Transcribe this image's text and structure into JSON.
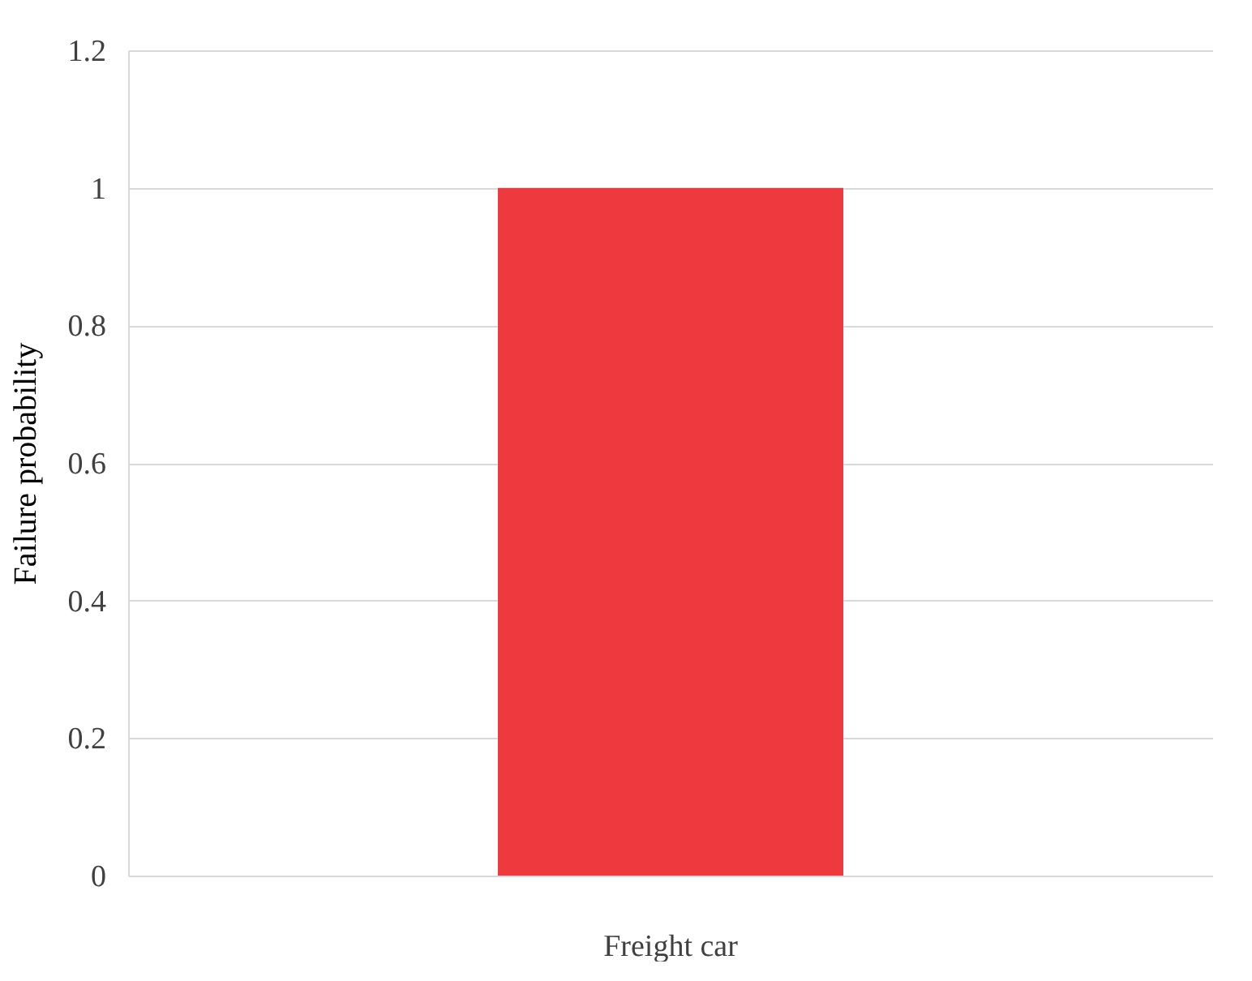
{
  "chart_data": {
    "type": "bar",
    "categories": [
      "Freight car"
    ],
    "values": [
      1
    ],
    "color": "#ee3a3e",
    "ylabel": "Failure probability",
    "ylim": [
      0,
      1.2
    ],
    "yticks": [
      0,
      0.2,
      0.4,
      0.6,
      0.8,
      1,
      1.2
    ],
    "grid": "y"
  }
}
